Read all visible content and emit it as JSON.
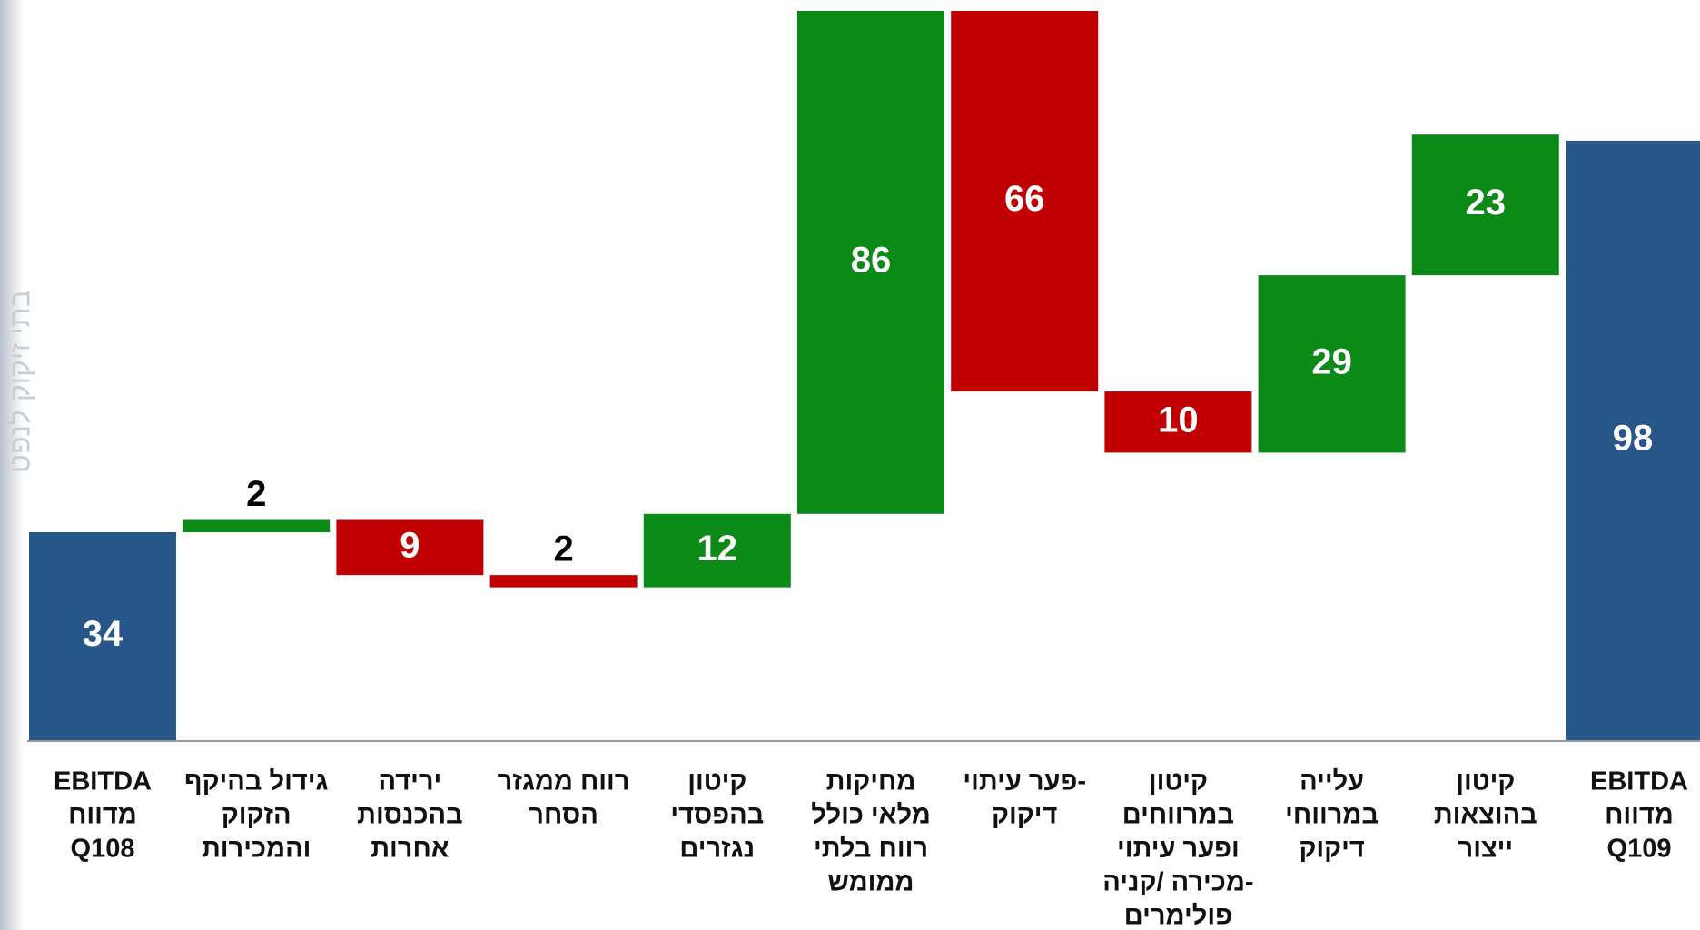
{
  "chart_data": {
    "type": "waterfall",
    "watermark": "בתי זיקוק לנפט",
    "categories": [
      [
        "EBITDA",
        "מדווח",
        "Q108"
      ],
      [
        "גידול בהיקף",
        "הזקוק",
        "והמכירות"
      ],
      [
        "ירידה",
        "בהכנסות",
        "אחרות"
      ],
      [
        "רווח ממגזר",
        "הסחר"
      ],
      [
        "קיטון",
        "בהפסדי",
        "נגזרים"
      ],
      [
        "מחיקות",
        "מלאי כולל",
        "רווח בלתי",
        "ממומש"
      ],
      [
        "-פער עיתוי",
        "דיקוק"
      ],
      [
        "קיטון",
        "במרווחים",
        "ופער עיתוי",
        "-מכירה /קניה",
        "פולימרים"
      ],
      [
        "עלייה",
        "במרווחי",
        "דיקוק"
      ],
      [
        "קיטון",
        "בהוצאות",
        "ייצור"
      ],
      [
        "EBITDA",
        "מדווח",
        "Q109"
      ]
    ],
    "values": [
      34,
      2,
      -9,
      -2,
      12,
      86,
      -66,
      -10,
      29,
      23,
      98
    ],
    "value_labels": [
      "34",
      "2",
      "9",
      "2",
      "12",
      "86",
      "66",
      "10",
      "29",
      "23",
      "98"
    ],
    "colors": [
      "#27568b",
      "#0b8a17",
      "#c00000",
      "#c00000",
      "#0b8a17",
      "#0b8a17",
      "#c00000",
      "#c00000",
      "#0b8a17",
      "#0b8a17",
      "#27568b"
    ],
    "ylim": [
      0,
      121
    ]
  }
}
